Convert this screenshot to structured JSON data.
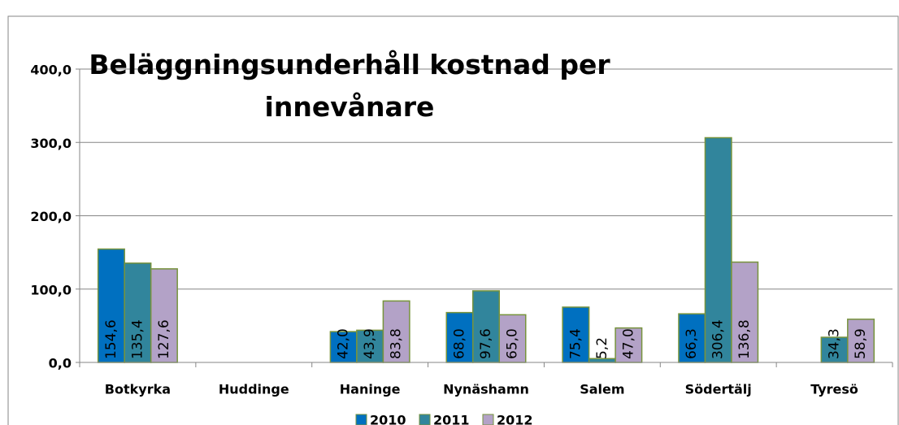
{
  "chart_data": {
    "type": "bar",
    "title": "Beläggningsunderhåll kostnad per innevånare",
    "categories": [
      "Botkyrka",
      "Huddinge",
      "Haninge",
      "Nynäshamn",
      "Salem",
      "Södertälj",
      "Tyresö"
    ],
    "series": [
      {
        "name": "2010",
        "color": "#0070c0",
        "values": [
          154.6,
          null,
          42.0,
          68.0,
          75.4,
          66.3,
          null
        ],
        "value_labels": [
          "154,6",
          null,
          "42,0",
          "68,0",
          "75,4",
          "66,3",
          null
        ]
      },
      {
        "name": "2011",
        "color": "#31859c",
        "values": [
          135.4,
          null,
          43.9,
          97.6,
          5.2,
          306.4,
          34.3
        ],
        "value_labels": [
          "135,4",
          null,
          "43,9",
          "97,6",
          "5,2",
          "306,4",
          "34,3"
        ]
      },
      {
        "name": "2012",
        "color": "#b3a2c7",
        "values": [
          127.6,
          null,
          83.8,
          65.0,
          47.0,
          136.8,
          58.9
        ],
        "value_labels": [
          "127,6",
          null,
          "83,8",
          "65,0",
          "47,0",
          "136,8",
          "58,9"
        ]
      }
    ],
    "ylim": [
      0,
      400
    ],
    "yticks": [
      {
        "value": 0,
        "label": "0,0"
      },
      {
        "value": 100,
        "label": "100,0"
      },
      {
        "value": 200,
        "label": "200,0"
      },
      {
        "value": 300,
        "label": "300,0"
      },
      {
        "value": 400,
        "label": "400,0"
      }
    ],
    "grid": true,
    "legend": "bottom"
  }
}
